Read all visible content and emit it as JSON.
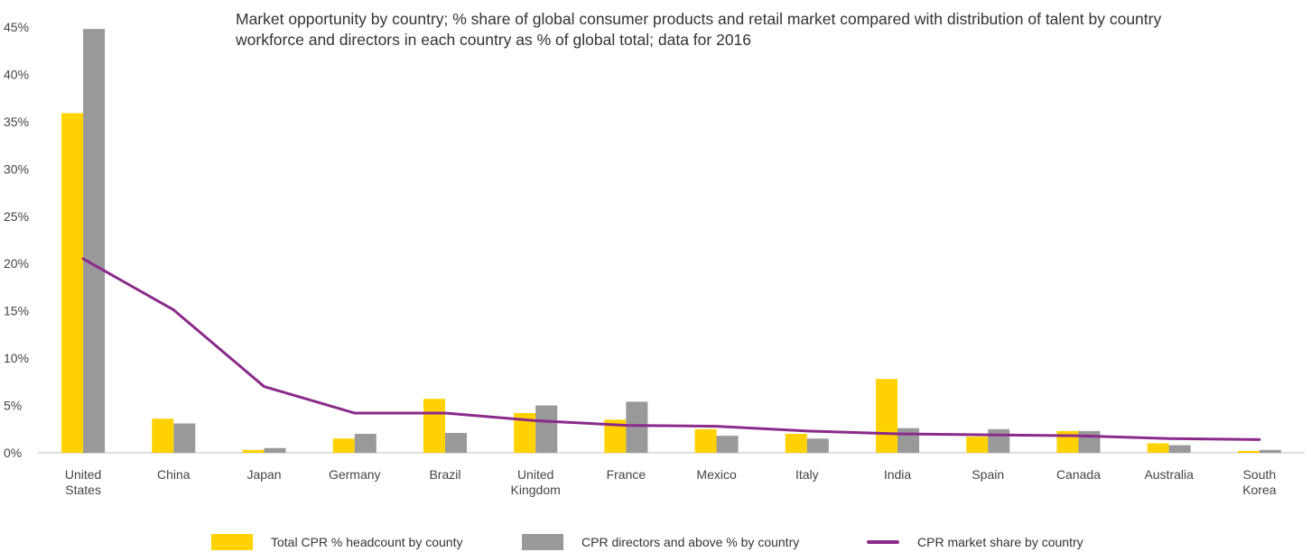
{
  "chart_data": {
    "type": "bar",
    "title": "Market opportunity by country; % share of global consumer products and retail market compared with distribution of talent by country workforce and directors in each country as % of global total; data for 2016",
    "categories": [
      [
        "United",
        "States"
      ],
      [
        "China"
      ],
      [
        "Japan"
      ],
      [
        "Germany"
      ],
      [
        "Brazil"
      ],
      [
        "United",
        "Kingdom"
      ],
      [
        "France"
      ],
      [
        "Mexico"
      ],
      [
        "Italy"
      ],
      [
        "India"
      ],
      [
        "Spain"
      ],
      [
        "Canada"
      ],
      [
        "Australia"
      ],
      [
        "South",
        "Korea"
      ]
    ],
    "ylim": [
      0,
      45
    ],
    "yticks": [
      0,
      5,
      10,
      15,
      20,
      25,
      30,
      35,
      40,
      45
    ],
    "ytick_labels": [
      "0%",
      "5%",
      "10%",
      "15%",
      "20%",
      "25%",
      "30%",
      "35%",
      "40%",
      "45%"
    ],
    "series": [
      {
        "name": "Total CPR % headcount by county",
        "kind": "bar",
        "color": "#FFD200",
        "values": [
          35.9,
          3.6,
          0.3,
          1.5,
          5.7,
          4.2,
          3.5,
          2.5,
          2.0,
          7.8,
          1.7,
          2.3,
          1.0,
          0.2
        ]
      },
      {
        "name": "CPR directors and above % by country",
        "kind": "bar",
        "color": "#999999",
        "values": [
          44.8,
          3.1,
          0.5,
          2.0,
          2.1,
          5.0,
          5.4,
          1.8,
          1.5,
          2.6,
          2.5,
          2.3,
          0.8,
          0.3
        ]
      },
      {
        "name": "CPR market share by country",
        "kind": "line",
        "color": "#8B2A8B",
        "values": [
          20.5,
          15.1,
          7.0,
          4.2,
          4.2,
          3.4,
          2.9,
          2.8,
          2.3,
          2.0,
          1.9,
          1.8,
          1.5,
          1.4
        ]
      }
    ],
    "legend_position": "bottom",
    "grid": false
  }
}
